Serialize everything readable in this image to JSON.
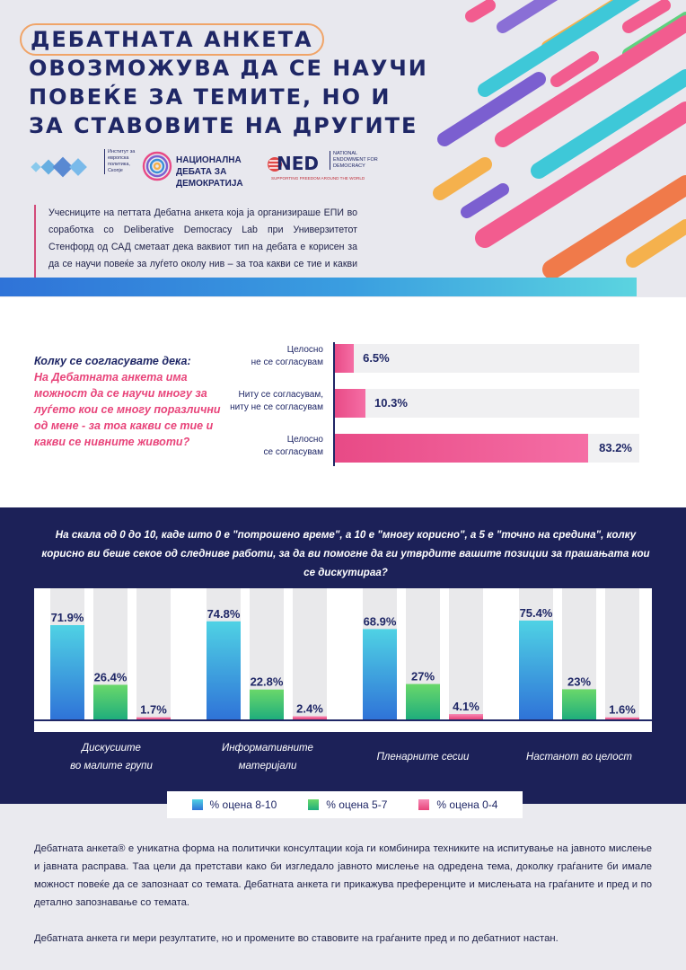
{
  "header": {
    "title_lines": [
      "ДЕБАТНАТА АНКЕТА",
      "ОВОЗМОЖУВА ДА СЕ НАУЧИ",
      "ПОВЕЌЕ ЗА ТЕМИТЕ, НО И",
      "ЗА СТАВОВИТЕ НА ДРУГИТЕ"
    ],
    "logos": {
      "epi": "Институт за европска политика, Скопје",
      "nd": "НАЦИОНАЛНА ДЕБАТА ЗА ДЕМОКРАТИЈА",
      "ned_word": "NED",
      "ned_name": "NATIONAL ENDOWMENT FOR DEMOCRACY",
      "ned_tagline": "SUPPORTING FREEDOM AROUND THE WORLD"
    },
    "intro": "Учесниците на петтата Дебатна анкета која ја организираше ЕПИ во соработка со Deliberative Democracy Lab при Универзитетот Стенфорд од САД сметаат дека ваквиот тип на дебата е корисен за да се научи повеќе за луѓето околу нив – за тоа какви се тие и какви се нивните животи."
  },
  "colors": {
    "navy": "#1c2158",
    "pink": "#e84a86",
    "blue": "#3a8fd8",
    "green": "#34b86a",
    "gray": "#e9e9eb"
  },
  "chart_data": [
    {
      "type": "bar",
      "orientation": "horizontal",
      "question_label": "Колку се согласувате дека:",
      "question": "На Дебатната анкета има можност да се научи многу за луѓето кои се многу поразлични од мене - за тоа какви се тие и какви се нивните животи?",
      "categories": [
        [
          "Целосно",
          "не се согласувам"
        ],
        [
          "Ниту се согласувам,",
          "ниту не се согласувам"
        ],
        [
          "Целосно",
          "се согласувам"
        ]
      ],
      "values": [
        6.5,
        10.3,
        83.2
      ],
      "labels": [
        "6.5%",
        "10.3%",
        "83.2%"
      ],
      "xlim": [
        0,
        100
      ]
    },
    {
      "type": "bar",
      "orientation": "vertical",
      "question": "На скала од 0 до 10, каде што 0 е \"потрошено време\", а 10 е \"многу корисно\", а 5 е \"точно на средина\", колку корисно ви беше секое од следниве работи, за да ви помогне да ги утврдите вашите позиции за прашањата кои се дискутираа?",
      "categories": [
        [
          "Дискусиите",
          "во малите групи"
        ],
        [
          "Информативните",
          "материјали"
        ],
        [
          "Пленарните сесии"
        ],
        [
          "Настанот во целост"
        ]
      ],
      "series": [
        {
          "name": "% оцена 8-10",
          "values": [
            71.9,
            74.8,
            68.9,
            75.4
          ],
          "labels": [
            "71.9%",
            "74.8%",
            "68.9%",
            "75.4%"
          ],
          "color": "#3a8fd8"
        },
        {
          "name": "% оцена 5-7",
          "values": [
            26.4,
            22.8,
            27,
            23
          ],
          "labels": [
            "26.4%",
            "22.8%",
            "27%",
            "23%"
          ],
          "color": "#34b86a"
        },
        {
          "name": "% оцена 0-4",
          "values": [
            1.7,
            2.4,
            4.1,
            1.6
          ],
          "labels": [
            "1.7%",
            "2.4%",
            "4.1%",
            "1.6%"
          ],
          "color": "#f05a92"
        }
      ],
      "ylim": [
        0,
        100
      ],
      "legend": "bottom"
    }
  ],
  "footer": {
    "p1": "Дебатната анкета® е уникатна форма на политички консултации која ги комбинира техниките на испитување на јавното мислење и јавната расправа. Таа цели да претстави како би изгледало јавното мислење на одредена тема, доколку граѓаните би имале можност повеќе да се запознаат со темата. Дебатната анкета ги прикажува преференците и мислењата на граѓаните и пред и по детално запознавање со темата.",
    "p2": "Дебатната анкета ги мери резултатите, но и промените во ставовите на граѓаните пред и по дебатниот настан."
  }
}
